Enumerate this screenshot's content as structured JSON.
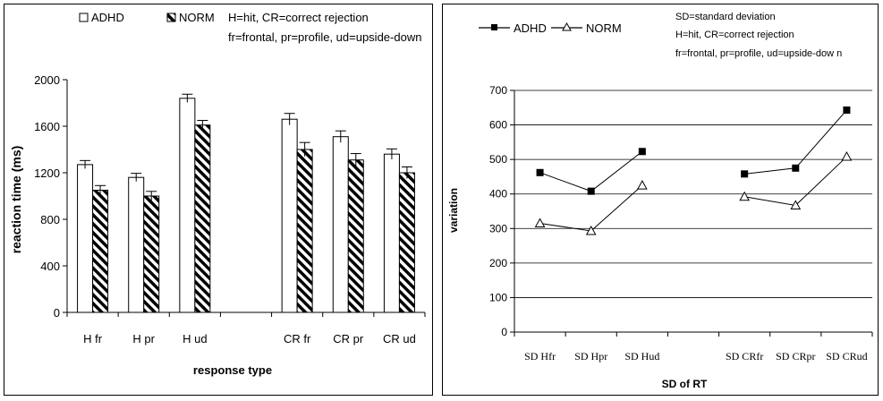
{
  "chart_data": [
    {
      "type": "bar",
      "categories": [
        "H fr",
        "H pr",
        "H ud",
        "",
        "CR fr",
        "CR pr",
        "CR ud"
      ],
      "series": [
        {
          "name": "ADHD",
          "values": [
            1270,
            1160,
            1840,
            null,
            1660,
            1510,
            1360
          ],
          "errors": [
            35,
            35,
            35,
            null,
            50,
            50,
            45
          ]
        },
        {
          "name": "NORM",
          "values": [
            1050,
            1000,
            1610,
            null,
            1400,
            1310,
            1200
          ],
          "errors": [
            40,
            40,
            40,
            null,
            60,
            55,
            50
          ]
        }
      ],
      "ylabel": "reaction time (ms)",
      "xlabel": "response type",
      "ylim": [
        0,
        2000
      ],
      "yticks": [
        0,
        400,
        800,
        1200,
        1600,
        2000
      ],
      "legend_note_1": "H=hit, CR=correct rejection",
      "legend_note_2": "fr=frontal, pr=profile, ud=upside-down",
      "legend_position": "top",
      "grid": false,
      "colors": {
        "ADHD": "#ffffff",
        "NORM": "hatched black/white"
      }
    },
    {
      "type": "line",
      "categories": [
        "SD Hfr",
        "SD Hpr",
        "SD Hud",
        "",
        "SD CRfr",
        "SD CRpr",
        "SD CRud"
      ],
      "series": [
        {
          "name": "ADHD",
          "values": [
            462,
            408,
            523,
            null,
            458,
            475,
            643
          ],
          "marker": "filled-square"
        },
        {
          "name": "NORM",
          "values": [
            315,
            293,
            425,
            null,
            392,
            367,
            508
          ],
          "marker": "open-triangle"
        }
      ],
      "ylabel": "variation",
      "xlabel": "SD of RT",
      "ylim": [
        0,
        700
      ],
      "yticks": [
        0,
        100,
        200,
        300,
        400,
        500,
        600,
        700
      ],
      "legend_note_1": "SD=standard deviation",
      "legend_note_2": "H=hit, CR=correct rejection",
      "legend_note_3": "fr=frontal, pr=profile, ud=upside-dow n",
      "legend_position": "top",
      "grid": true
    }
  ]
}
